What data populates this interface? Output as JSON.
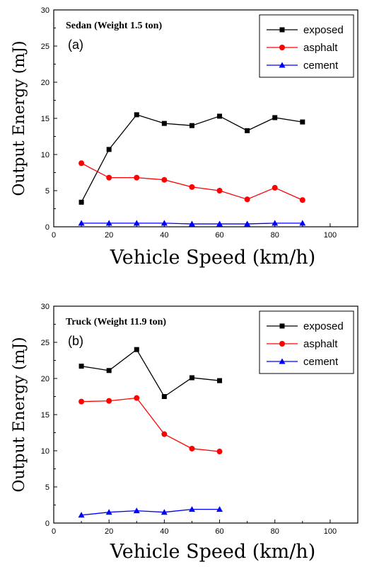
{
  "chart_data": [
    {
      "type": "line",
      "title": "Sedan (Weight 1.5 ton)",
      "panel_label": "(a)",
      "xlabel": "Vehicle Speed (km/h)",
      "ylabel": "Output Energy (mJ)",
      "xlim": [
        0,
        110
      ],
      "ylim": [
        0,
        30
      ],
      "xticks": [
        0,
        20,
        40,
        60,
        80,
        100
      ],
      "yticks": [
        0,
        5,
        10,
        15,
        20,
        25,
        30
      ],
      "grid": false,
      "legend_position": "top-right",
      "x": [
        10,
        20,
        30,
        40,
        50,
        60,
        70,
        80,
        90
      ],
      "series": [
        {
          "name": "exposed",
          "color": "#000000",
          "marker": "square",
          "values": [
            3.4,
            10.7,
            15.5,
            14.3,
            14.0,
            15.3,
            13.3,
            15.1,
            14.5
          ]
        },
        {
          "name": "asphalt",
          "color": "#ff0000",
          "marker": "circle",
          "values": [
            8.8,
            6.8,
            6.8,
            6.5,
            5.5,
            5.0,
            3.8,
            5.4,
            3.7
          ]
        },
        {
          "name": "cement",
          "color": "#0000ff",
          "marker": "triangle",
          "values": [
            0.5,
            0.5,
            0.5,
            0.5,
            0.4,
            0.4,
            0.4,
            0.5,
            0.5
          ]
        }
      ]
    },
    {
      "type": "line",
      "title": "Truck (Weight 11.9 ton)",
      "panel_label": "(b)",
      "xlabel": "Vehicle Speed (km/h)",
      "ylabel": "Output Energy (mJ)",
      "xlim": [
        0,
        110
      ],
      "ylim": [
        0,
        30
      ],
      "xticks": [
        0,
        20,
        40,
        60,
        80,
        100
      ],
      "yticks": [
        0,
        5,
        10,
        15,
        20,
        25,
        30
      ],
      "grid": false,
      "legend_position": "top-right",
      "x": [
        10,
        20,
        30,
        40,
        50,
        60
      ],
      "series": [
        {
          "name": "exposed",
          "color": "#000000",
          "marker": "square",
          "values": [
            21.7,
            21.1,
            24.0,
            17.5,
            20.1,
            19.7
          ]
        },
        {
          "name": "asphalt",
          "color": "#ff0000",
          "marker": "circle",
          "values": [
            16.8,
            16.9,
            17.3,
            12.3,
            10.3,
            9.9
          ]
        },
        {
          "name": "cement",
          "color": "#0000ff",
          "marker": "triangle",
          "values": [
            1.1,
            1.5,
            1.7,
            1.5,
            1.9,
            1.9
          ]
        }
      ]
    }
  ]
}
